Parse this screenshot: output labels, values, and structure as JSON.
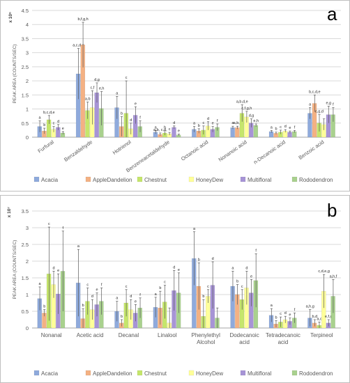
{
  "legend": {
    "entries": [
      "Acacia",
      "AppleDandelion",
      "Chestnut",
      "HoneyDew",
      "Multifloral",
      "Rododendron"
    ]
  },
  "colors": {
    "Acacia": "#8faadc",
    "AppleDandelion": "#f4b183",
    "Chestnut": "#c5e66b",
    "HoneyDew": "#ffff99",
    "Multifloral": "#a794d6",
    "Rododendron": "#a9d18e",
    "grid": "#d9d9d9",
    "axis_text": "#595959"
  },
  "chart_data": [
    {
      "type": "bar",
      "panel_letter": "a",
      "multiplier_label": "x 10⁶",
      "ylabel": "PEAK AREA (COUNTS/SEC)",
      "ylim": [
        0,
        4.5
      ],
      "yticks": [
        "0",
        "0.5",
        "1",
        "1.5",
        "2",
        "2.5",
        "3",
        "3.5",
        "4",
        "4.5"
      ],
      "grid": true,
      "legend_position": "bottom",
      "categories": [
        "Furfural",
        "Benzaldehyde",
        "Hotrienol",
        "Benzeneacetaldehyde",
        "Octanoic acid",
        "Nonanoic acid",
        "n-Decanoic acid",
        "Benzoic acid"
      ],
      "series": [
        {
          "name": "Acacia",
          "values": [
            0.38,
            2.25,
            1.05,
            0.18,
            0.28,
            0.34,
            0.2,
            0.85
          ],
          "errors": [
            0.2,
            0.9,
            0.4,
            0.06,
            0.1,
            0.05,
            0.04,
            0.2
          ]
        },
        {
          "name": "AppleDandelion",
          "values": [
            0.22,
            3.28,
            0.38,
            0.1,
            0.22,
            0.34,
            0.14,
            1.2
          ],
          "errors": [
            0.1,
            0.8,
            0.35,
            0.05,
            0.08,
            0.05,
            0.04,
            0.3
          ]
        },
        {
          "name": "Chestnut",
          "values": [
            0.62,
            0.95,
            0.85,
            0.15,
            0.25,
            0.85,
            0.18,
            0.5
          ],
          "errors": [
            0.15,
            0.3,
            1.15,
            0.08,
            0.15,
            0.3,
            0.07,
            0.3
          ]
        },
        {
          "name": "HoneyDew",
          "values": [
            0.28,
            1.05,
            0.3,
            0.12,
            0.4,
            0.72,
            0.22,
            0.45
          ],
          "errors": [
            0.1,
            0.6,
            0.2,
            0.05,
            0.15,
            0.2,
            0.05,
            0.2
          ]
        },
        {
          "name": "Multifloral",
          "values": [
            0.35,
            1.58,
            0.78,
            0.35,
            0.28,
            0.5,
            0.18,
            0.8
          ],
          "errors": [
            0.1,
            0.35,
            0.3,
            0.05,
            0.1,
            0.15,
            0.04,
            0.3
          ]
        },
        {
          "name": "Rododendron",
          "values": [
            0.15,
            1.02,
            0.38,
            0.08,
            0.35,
            0.42,
            0.2,
            0.8
          ],
          "errors": [
            0.05,
            0.6,
            0.2,
            0.03,
            0.12,
            0.05,
            0.04,
            0.25
          ]
        }
      ],
      "annotations": [
        {
          "category": 0,
          "series": 0,
          "text": "a"
        },
        {
          "category": 0,
          "series": 1,
          "text": "b"
        },
        {
          "category": 0,
          "series": 2,
          "text": "b,c,d,e"
        },
        {
          "category": 0,
          "series": 3,
          "text": "c"
        },
        {
          "category": 0,
          "series": 4,
          "text": "d"
        },
        {
          "category": 0,
          "series": 5,
          "text": "e"
        },
        {
          "category": 1,
          "series": 0,
          "text": "a,c,d,e"
        },
        {
          "category": 1,
          "series": 1,
          "text": "b,f,g,h"
        },
        {
          "category": 1,
          "series": 2,
          "text": "a,b"
        },
        {
          "category": 1,
          "series": 3,
          "text": "c,f"
        },
        {
          "category": 1,
          "series": 4,
          "text": "d,g"
        },
        {
          "category": 1,
          "series": 5,
          "text": "e,h"
        },
        {
          "category": 2,
          "series": 0,
          "text": "a"
        },
        {
          "category": 2,
          "series": 1,
          "text": "b"
        },
        {
          "category": 2,
          "series": 2,
          "text": "c"
        },
        {
          "category": 2,
          "series": 3,
          "text": "d"
        },
        {
          "category": 2,
          "series": 4,
          "text": "e"
        },
        {
          "category": 2,
          "series": 5,
          "text": "f"
        },
        {
          "category": 3,
          "series": 0,
          "text": "a"
        },
        {
          "category": 3,
          "series": 1,
          "text": "a,b, c,d,"
        },
        {
          "category": 3,
          "series": 2,
          "text": "b"
        },
        {
          "category": 3,
          "series": 3,
          "text": "c"
        },
        {
          "category": 3,
          "series": 4,
          "text": "d"
        },
        {
          "category": 3,
          "series": 5,
          "text": "e"
        },
        {
          "category": 4,
          "series": 0,
          "text": "a"
        },
        {
          "category": 4,
          "series": 1,
          "text": "b"
        },
        {
          "category": 4,
          "series": 2,
          "text": "c"
        },
        {
          "category": 4,
          "series": 3,
          "text": "d"
        },
        {
          "category": 4,
          "series": 4,
          "text": "e"
        },
        {
          "category": 4,
          "series": 5,
          "text": "f"
        },
        {
          "category": 5,
          "series": 0,
          "text": "a"
        },
        {
          "category": 5,
          "series": 1,
          "text": "a,b,c"
        },
        {
          "category": 5,
          "series": 2,
          "text": "a,b,d,e"
        },
        {
          "category": 5,
          "series": 3,
          "text": "c,f,g,h"
        },
        {
          "category": 5,
          "series": 4,
          "text": "d,g"
        },
        {
          "category": 5,
          "series": 5,
          "text": "e,h"
        },
        {
          "category": 6,
          "series": 0,
          "text": "a"
        },
        {
          "category": 6,
          "series": 1,
          "text": "b"
        },
        {
          "category": 6,
          "series": 2,
          "text": "c"
        },
        {
          "category": 6,
          "series": 3,
          "text": "d"
        },
        {
          "category": 6,
          "series": 4,
          "text": "e"
        },
        {
          "category": 6,
          "series": 5,
          "text": "f"
        },
        {
          "category": 7,
          "series": 0,
          "text": "a"
        },
        {
          "category": 7,
          "series": 1,
          "text": "b,c,d,e"
        },
        {
          "category": 7,
          "series": 2,
          "text": "c,g,d"
        },
        {
          "category": 7,
          "series": 3,
          "text": ""
        },
        {
          "category": 7,
          "series": 4,
          "text": "e,g"
        },
        {
          "category": 7,
          "series": 5,
          "text": "f"
        }
      ]
    },
    {
      "type": "bar",
      "panel_letter": "b",
      "multiplier_label": "x 10⁷",
      "ylabel": "PEAK AREA (COUNTS/SEC)",
      "ylim": [
        0,
        3.5
      ],
      "yticks": [
        "0",
        "0.5",
        "1",
        "1.5",
        "2",
        "2.5",
        "3",
        "3.5"
      ],
      "grid": true,
      "legend_position": "bottom",
      "categories": [
        "Nonanal",
        "Acetic acid",
        "Decanal",
        "Linalool",
        "Phenylethyl Alcohol",
        "Dodecanoic acid",
        "Tetradecanoic acid",
        "Terpineol"
      ],
      "series": [
        {
          "name": "Acacia",
          "values": [
            0.88,
            1.35,
            0.5,
            0.62,
            2.08,
            1.25,
            0.38,
            0.3
          ],
          "errors": [
            0.35,
            1.0,
            0.3,
            0.3,
            0.8,
            0.45,
            0.2,
            0.25
          ]
        },
        {
          "name": "AppleDandelion",
          "values": [
            0.45,
            0.28,
            0.15,
            0.6,
            1.25,
            1.0,
            0.12,
            0.15
          ],
          "errors": [
            0.1,
            0.3,
            0.1,
            0.5,
            0.7,
            0.3,
            0.1,
            0.1
          ]
        },
        {
          "name": "Chestnut",
          "values": [
            1.62,
            0.8,
            0.75,
            0.78,
            0.35,
            0.85,
            0.18,
            0.08
          ],
          "errors": [
            1.4,
            0.4,
            0.4,
            0.5,
            0.5,
            0.3,
            0.15,
            0.1
          ]
        },
        {
          "name": "HoneyDew",
          "values": [
            1.3,
            0.55,
            0.55,
            0.15,
            0.95,
            1.2,
            0.25,
            1.1
          ],
          "errors": [
            0.4,
            0.3,
            0.3,
            0.45,
            0.2,
            0.5,
            0.1,
            0.5
          ]
        },
        {
          "name": "Multifloral",
          "values": [
            1.02,
            0.7,
            0.45,
            1.12,
            1.28,
            1.05,
            0.2,
            0.15
          ],
          "errors": [
            0.6,
            0.35,
            0.25,
            0.6,
            0.7,
            0.4,
            0.1,
            0.1
          ]
        },
        {
          "name": "Rododendron",
          "values": [
            1.7,
            0.8,
            0.6,
            1.05,
            0.3,
            1.42,
            0.3,
            0.95
          ],
          "errors": [
            1.2,
            0.4,
            0.3,
            0.6,
            0.3,
            0.8,
            0.15,
            0.5
          ]
        }
      ],
      "annotations": [
        {
          "category": 0,
          "series": 0,
          "text": "a"
        },
        {
          "category": 0,
          "series": 1,
          "text": "b"
        },
        {
          "category": 0,
          "series": 2,
          "text": "c"
        },
        {
          "category": 0,
          "series": 3,
          "text": "d"
        },
        {
          "category": 0,
          "series": 4,
          "text": "e"
        },
        {
          "category": 0,
          "series": 5,
          "text": "f"
        },
        {
          "category": 1,
          "series": 0,
          "text": "a"
        },
        {
          "category": 1,
          "series": 1,
          "text": "b"
        },
        {
          "category": 1,
          "series": 2,
          "text": "c"
        },
        {
          "category": 1,
          "series": 3,
          "text": "d"
        },
        {
          "category": 1,
          "series": 4,
          "text": "e"
        },
        {
          "category": 1,
          "series": 5,
          "text": "f"
        },
        {
          "category": 2,
          "series": 0,
          "text": "a"
        },
        {
          "category": 2,
          "series": 1,
          "text": "b"
        },
        {
          "category": 2,
          "series": 2,
          "text": "c"
        },
        {
          "category": 2,
          "series": 3,
          "text": "d"
        },
        {
          "category": 2,
          "series": 4,
          "text": "e"
        },
        {
          "category": 2,
          "series": 5,
          "text": "f"
        },
        {
          "category": 3,
          "series": 0,
          "text": "a"
        },
        {
          "category": 3,
          "series": 1,
          "text": "b"
        },
        {
          "category": 3,
          "series": 2,
          "text": "c"
        },
        {
          "category": 3,
          "series": 3,
          "text": ""
        },
        {
          "category": 3,
          "series": 4,
          "text": "d"
        },
        {
          "category": 3,
          "series": 5,
          "text": "e"
        },
        {
          "category": 4,
          "series": 0,
          "text": "a"
        },
        {
          "category": 4,
          "series": 1,
          "text": "b"
        },
        {
          "category": 4,
          "series": 2,
          "text": "b"
        },
        {
          "category": 4,
          "series": 3,
          "text": "c"
        },
        {
          "category": 4,
          "series": 4,
          "text": "d"
        },
        {
          "category": 4,
          "series": 5,
          "text": ""
        },
        {
          "category": 5,
          "series": 0,
          "text": "a"
        },
        {
          "category": 5,
          "series": 1,
          "text": "b"
        },
        {
          "category": 5,
          "series": 2,
          "text": "c"
        },
        {
          "category": 5,
          "series": 3,
          "text": "d"
        },
        {
          "category": 5,
          "series": 4,
          "text": "e"
        },
        {
          "category": 5,
          "series": 5,
          "text": "f"
        },
        {
          "category": 6,
          "series": 0,
          "text": "a"
        },
        {
          "category": 6,
          "series": 1,
          "text": "b"
        },
        {
          "category": 6,
          "series": 2,
          "text": "c"
        },
        {
          "category": 6,
          "series": 3,
          "text": "d"
        },
        {
          "category": 6,
          "series": 4,
          "text": "e"
        },
        {
          "category": 6,
          "series": 5,
          "text": "f"
        },
        {
          "category": 7,
          "series": 0,
          "text": "a,h,g"
        },
        {
          "category": 7,
          "series": 1,
          "text": "b,d"
        },
        {
          "category": 7,
          "series": 2,
          "text": "a,c"
        },
        {
          "category": 7,
          "series": 3,
          "text": "c,d,e,g"
        },
        {
          "category": 7,
          "series": 4,
          "text": "e,f,g"
        },
        {
          "category": 7,
          "series": 5,
          "text": "a,h,f"
        }
      ]
    }
  ]
}
